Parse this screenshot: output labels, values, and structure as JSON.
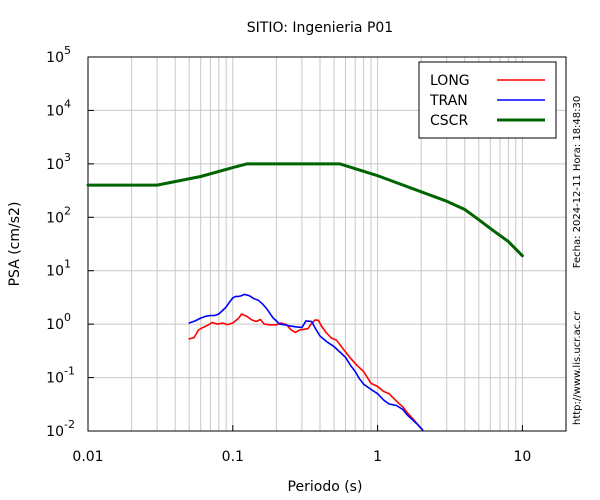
{
  "chart_data": {
    "type": "line",
    "title": "SITIO: Ingenieria P01",
    "xlabel": "Periodo (s)",
    "ylabel": "PSA (cm/s2)",
    "x_scale": "log",
    "y_scale": "log",
    "xlim": [
      0.01,
      20
    ],
    "ylim": [
      0.01,
      100000
    ],
    "x_ticks": [
      {
        "value": 0.01,
        "label": "0.01"
      },
      {
        "value": 0.1,
        "label": "0.1"
      },
      {
        "value": 1,
        "label": "1"
      },
      {
        "value": 10,
        "label": "10"
      }
    ],
    "y_ticks": [
      {
        "value": 0.01,
        "base": "10",
        "exp": "-2"
      },
      {
        "value": 0.1,
        "base": "10",
        "exp": "-1"
      },
      {
        "value": 1,
        "base": "10",
        "exp": "0"
      },
      {
        "value": 10,
        "base": "10",
        "exp": "1"
      },
      {
        "value": 100,
        "base": "10",
        "exp": "2"
      },
      {
        "value": 1000,
        "base": "10",
        "exp": "3"
      },
      {
        "value": 10000,
        "base": "10",
        "exp": "4"
      },
      {
        "value": 100000,
        "base": "10",
        "exp": "5"
      }
    ],
    "grid": true,
    "legend_position": "top-right",
    "series": [
      {
        "name": "LONG",
        "color": "#ff0000",
        "stroke_weight": "normal",
        "points": [
          [
            0.05,
            0.53
          ],
          [
            0.054,
            0.56
          ],
          [
            0.058,
            0.78
          ],
          [
            0.063,
            0.88
          ],
          [
            0.068,
            0.97
          ],
          [
            0.072,
            1.08
          ],
          [
            0.078,
            1.0
          ],
          [
            0.085,
            1.04
          ],
          [
            0.092,
            0.98
          ],
          [
            0.1,
            1.05
          ],
          [
            0.11,
            1.3
          ],
          [
            0.115,
            1.55
          ],
          [
            0.125,
            1.4
          ],
          [
            0.135,
            1.2
          ],
          [
            0.145,
            1.12
          ],
          [
            0.155,
            1.22
          ],
          [
            0.165,
            1.0
          ],
          [
            0.18,
            0.97
          ],
          [
            0.2,
            0.97
          ],
          [
            0.215,
            1.05
          ],
          [
            0.235,
            0.98
          ],
          [
            0.25,
            0.8
          ],
          [
            0.27,
            0.7
          ],
          [
            0.29,
            0.78
          ],
          [
            0.31,
            0.8
          ],
          [
            0.33,
            0.82
          ],
          [
            0.345,
            0.98
          ],
          [
            0.37,
            1.2
          ],
          [
            0.39,
            1.18
          ],
          [
            0.41,
            0.92
          ],
          [
            0.44,
            0.7
          ],
          [
            0.48,
            0.55
          ],
          [
            0.52,
            0.5
          ],
          [
            0.58,
            0.34
          ],
          [
            0.65,
            0.23
          ],
          [
            0.72,
            0.17
          ],
          [
            0.8,
            0.13
          ],
          [
            0.85,
            0.1
          ],
          [
            0.9,
            0.078
          ],
          [
            1.0,
            0.068
          ],
          [
            1.1,
            0.055
          ],
          [
            1.2,
            0.05
          ],
          [
            1.3,
            0.04
          ],
          [
            1.4,
            0.033
          ],
          [
            1.5,
            0.028
          ],
          [
            1.6,
            0.022
          ],
          [
            1.75,
            0.017
          ],
          [
            1.9,
            0.013
          ],
          [
            2.0,
            0.011
          ]
        ]
      },
      {
        "name": "TRAN",
        "color": "#0000ff",
        "stroke_weight": "normal",
        "points": [
          [
            0.05,
            1.05
          ],
          [
            0.055,
            1.15
          ],
          [
            0.06,
            1.3
          ],
          [
            0.065,
            1.4
          ],
          [
            0.07,
            1.45
          ],
          [
            0.075,
            1.45
          ],
          [
            0.08,
            1.55
          ],
          [
            0.085,
            1.8
          ],
          [
            0.09,
            2.1
          ],
          [
            0.095,
            2.6
          ],
          [
            0.1,
            3.1
          ],
          [
            0.105,
            3.3
          ],
          [
            0.11,
            3.3
          ],
          [
            0.115,
            3.4
          ],
          [
            0.12,
            3.6
          ],
          [
            0.13,
            3.4
          ],
          [
            0.14,
            3.0
          ],
          [
            0.15,
            2.8
          ],
          [
            0.16,
            2.4
          ],
          [
            0.17,
            2.0
          ],
          [
            0.18,
            1.6
          ],
          [
            0.19,
            1.3
          ],
          [
            0.2,
            1.15
          ],
          [
            0.21,
            1.0
          ],
          [
            0.23,
            0.97
          ],
          [
            0.25,
            0.92
          ],
          [
            0.28,
            0.88
          ],
          [
            0.3,
            0.87
          ],
          [
            0.32,
            1.15
          ],
          [
            0.35,
            1.12
          ],
          [
            0.37,
            0.85
          ],
          [
            0.4,
            0.6
          ],
          [
            0.45,
            0.46
          ],
          [
            0.5,
            0.38
          ],
          [
            0.55,
            0.3
          ],
          [
            0.6,
            0.24
          ],
          [
            0.65,
            0.17
          ],
          [
            0.7,
            0.13
          ],
          [
            0.75,
            0.095
          ],
          [
            0.8,
            0.075
          ],
          [
            0.9,
            0.06
          ],
          [
            1.0,
            0.05
          ],
          [
            1.1,
            0.038
          ],
          [
            1.2,
            0.032
          ],
          [
            1.35,
            0.03
          ],
          [
            1.5,
            0.025
          ],
          [
            1.6,
            0.02
          ],
          [
            1.75,
            0.016
          ],
          [
            1.9,
            0.013
          ],
          [
            2.05,
            0.0105
          ]
        ]
      },
      {
        "name": "CSCR",
        "color": "#006400",
        "stroke_weight": "thick",
        "points": [
          [
            0.01,
            400
          ],
          [
            0.03,
            400
          ],
          [
            0.06,
            580
          ],
          [
            0.1,
            850
          ],
          [
            0.125,
            1000
          ],
          [
            0.55,
            1000
          ],
          [
            1.0,
            600
          ],
          [
            2.0,
            300
          ],
          [
            3.0,
            200
          ],
          [
            4.0,
            140
          ],
          [
            5.0,
            90
          ],
          [
            6.0,
            62
          ],
          [
            8.0,
            35
          ],
          [
            10.0,
            19
          ]
        ]
      }
    ],
    "side_text_right": "Fecha: 2024-12-11 Hora: 18:48:30",
    "side_text_bottom": "http://www.lis.ucr.ac.cr"
  }
}
